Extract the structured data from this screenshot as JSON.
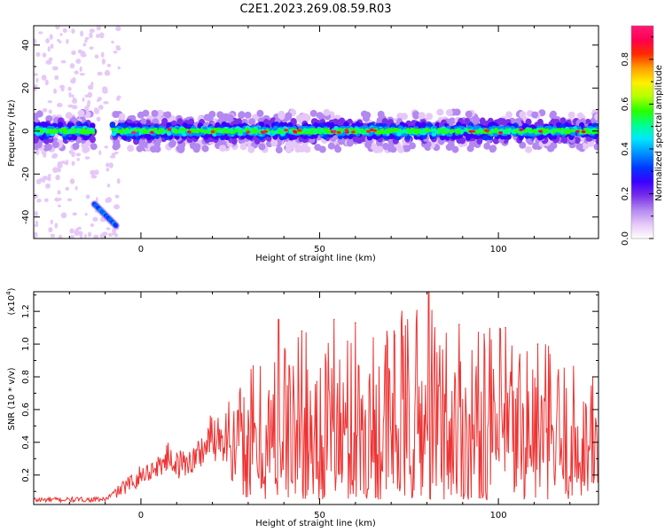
{
  "title": "C2E1.2023.269.08.59.R03",
  "chart_data": [
    {
      "type": "heatmap",
      "title": "",
      "xlabel": "Height of straight line (km)",
      "ylabel": "Frequency (Hz)",
      "xlim": [
        -30,
        128
      ],
      "ylim": [
        -50,
        49
      ],
      "xticks": [
        0,
        50,
        100
      ],
      "yticks": [
        -40,
        -20,
        0,
        20,
        40
      ],
      "colorbar": {
        "label": "Normalized spectral amplitude",
        "range": [
          0,
          0.95
        ],
        "ticks": [
          0.0,
          0.2,
          0.4,
          0.6,
          0.8
        ],
        "tick_labels": [
          "0.0",
          "0.2",
          "0.4",
          "0.6",
          "0.8"
        ],
        "colormap": [
          "#ffffff",
          "#e6c8f8",
          "#b388f0",
          "#7a30e8",
          "#3a00ff",
          "#0038ff",
          "#0090ff",
          "#00e6ff",
          "#00ff90",
          "#28ff00",
          "#b4ff00",
          "#ffee00",
          "#ffa000",
          "#ff2a00",
          "#ff0050",
          "#ff1a78"
        ]
      },
      "features": [
        {
          "description": "main echo band",
          "x_range": [
            -8,
            128
          ],
          "frequency_center": 0,
          "frequency_halfwidth": 4
        },
        {
          "description": "band left of 0 km",
          "x_range": [
            -30,
            -13
          ],
          "frequency_center": 0,
          "frequency_halfwidth": 4
        },
        {
          "description": "descending streak",
          "x_start": -13,
          "x_end": -7,
          "frequency_start": -34,
          "frequency_end": -44
        }
      ]
    },
    {
      "type": "line",
      "title": "",
      "xlabel": "Height of straight line (km)",
      "ylabel": "SNR (10 * v/v)",
      "y_scale_label": "(x10",
      "y_scale_exponent": "4",
      "y_scale_suffix": ")",
      "xlim": [
        -30,
        128
      ],
      "ylim": [
        0.02,
        1.32
      ],
      "xticks": [
        0,
        50,
        100
      ],
      "yticks": [
        0.2,
        0.4,
        0.6,
        0.8,
        1.0,
        1.2
      ],
      "ytick_labels": [
        "0.2",
        "0.4",
        "0.6",
        "0.8",
        "1.0",
        "1.2"
      ],
      "color": "#ee3333",
      "envelope": {
        "x": [
          -30,
          -10,
          -5,
          0,
          5,
          8,
          10,
          15,
          20,
          25,
          30,
          35,
          40,
          50,
          60,
          80,
          90,
          100,
          110,
          120,
          128
        ],
        "upper": [
          0.06,
          0.06,
          0.15,
          0.24,
          0.3,
          0.38,
          0.32,
          0.36,
          0.55,
          0.62,
          0.9,
          0.95,
          1.12,
          1.05,
          1.1,
          1.3,
          1.1,
          1.12,
          1.1,
          0.9,
          0.85
        ],
        "lower": [
          0.02,
          0.03,
          0.05,
          0.1,
          0.15,
          0.18,
          0.12,
          0.15,
          0.18,
          0.15,
          0.05,
          0.05,
          0.06,
          0.05,
          0.05,
          0.05,
          0.05,
          0.05,
          0.05,
          0.05,
          0.1
        ]
      },
      "peaks": [
        {
          "x": 38.5,
          "y": 1.15
        },
        {
          "x": 45,
          "y": 1.08
        },
        {
          "x": 54,
          "y": 1.15
        },
        {
          "x": 60,
          "y": 1.13
        },
        {
          "x": 71,
          "y": 1.05
        },
        {
          "x": 80.5,
          "y": 1.32
        },
        {
          "x": 89,
          "y": 1.12
        },
        {
          "x": 96,
          "y": 1.06
        },
        {
          "x": 102,
          "y": 1.1
        },
        {
          "x": 111,
          "y": 1.0
        }
      ]
    }
  ]
}
